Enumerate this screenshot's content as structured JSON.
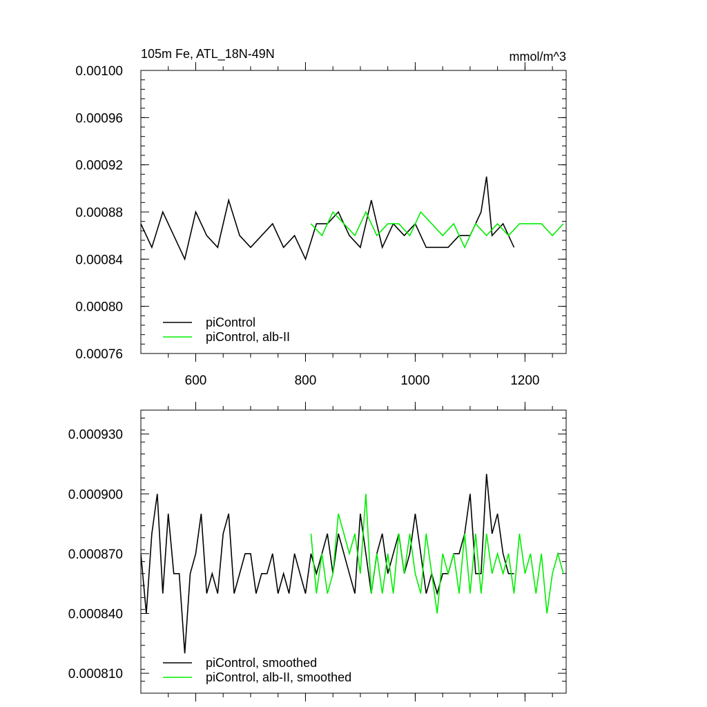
{
  "chart_data": [
    {
      "type": "line",
      "title": "105m Fe, ATL_18N-49N",
      "units": "mmol/m^3",
      "xlabel": "",
      "ylabel": "",
      "xlim": [
        500,
        1275
      ],
      "ylim": [
        0.00076,
        0.001
      ],
      "x_ticks": [
        600,
        800,
        1000,
        1200
      ],
      "x_tick_labels": [
        "600",
        "800",
        "1000",
        "1200"
      ],
      "y_ticks": [
        0.00076,
        0.0008,
        0.00084,
        0.00088,
        0.00092,
        0.00096,
        0.001
      ],
      "y_tick_labels": [
        "0.00076",
        "0.00080",
        "0.00084",
        "0.00088",
        "0.00092",
        "0.00096",
        "0.00100"
      ],
      "grid": false,
      "legend_position": "bottom-left",
      "series": [
        {
          "name": "piControl",
          "color": "#000000",
          "x": [
            500,
            520,
            540,
            560,
            580,
            600,
            620,
            640,
            660,
            680,
            700,
            720,
            740,
            760,
            780,
            800,
            820,
            840,
            860,
            880,
            900,
            920,
            940,
            960,
            980,
            1000,
            1020,
            1040,
            1060,
            1080,
            1100,
            1120,
            1130,
            1140,
            1160,
            1180
          ],
          "y": [
            0.00087,
            0.00085,
            0.00088,
            0.00086,
            0.00084,
            0.00088,
            0.00086,
            0.00085,
            0.00089,
            0.00086,
            0.00085,
            0.00086,
            0.00087,
            0.00085,
            0.00086,
            0.00084,
            0.00087,
            0.00087,
            0.00088,
            0.00086,
            0.00085,
            0.00089,
            0.00085,
            0.00087,
            0.00086,
            0.00087,
            0.00085,
            0.00085,
            0.00085,
            0.00086,
            0.00086,
            0.00088,
            0.00091,
            0.00086,
            0.00087,
            0.00085
          ]
        },
        {
          "name": "piControl, alb-II",
          "color": "#00ee00",
          "x": [
            810,
            830,
            850,
            870,
            890,
            910,
            930,
            950,
            970,
            990,
            1010,
            1030,
            1050,
            1070,
            1090,
            1110,
            1130,
            1150,
            1170,
            1190,
            1210,
            1230,
            1250,
            1270
          ],
          "y": [
            0.00087,
            0.00086,
            0.00088,
            0.00087,
            0.00086,
            0.00088,
            0.00086,
            0.00087,
            0.00087,
            0.00086,
            0.00088,
            0.00087,
            0.00086,
            0.00087,
            0.00085,
            0.00087,
            0.00086,
            0.00087,
            0.00086,
            0.00087,
            0.00087,
            0.00087,
            0.00086,
            0.00087
          ]
        }
      ]
    },
    {
      "type": "line",
      "title": "",
      "xlabel": "",
      "ylabel": "",
      "xlim": [
        500,
        1275
      ],
      "ylim": [
        0.0008,
        0.000942
      ],
      "x_ticks": [
        600,
        800,
        1000,
        1200
      ],
      "x_tick_labels": [],
      "y_ticks": [
        0.00081,
        0.00084,
        0.00087,
        0.0009,
        0.00093
      ],
      "y_tick_labels": [
        "0.000810",
        "0.000840",
        "0.000870",
        "0.000900",
        "0.000930"
      ],
      "grid": false,
      "legend_position": "bottom-left",
      "series": [
        {
          "name": "piControl, smoothed",
          "color": "#000000",
          "x": [
            500,
            510,
            520,
            530,
            540,
            550,
            560,
            570,
            580,
            590,
            600,
            610,
            620,
            630,
            640,
            650,
            660,
            670,
            680,
            690,
            700,
            710,
            720,
            730,
            740,
            750,
            760,
            770,
            780,
            790,
            800,
            810,
            820,
            830,
            840,
            850,
            860,
            870,
            880,
            890,
            900,
            910,
            920,
            930,
            940,
            950,
            960,
            970,
            980,
            990,
            1000,
            1010,
            1020,
            1030,
            1040,
            1050,
            1060,
            1070,
            1080,
            1090,
            1100,
            1110,
            1120,
            1130,
            1140,
            1150,
            1160,
            1170,
            1180
          ],
          "y": [
            0.00087,
            0.00084,
            0.00088,
            0.0009,
            0.00085,
            0.00089,
            0.00086,
            0.00086,
            0.00082,
            0.00086,
            0.00087,
            0.00089,
            0.00085,
            0.00086,
            0.00085,
            0.00088,
            0.00089,
            0.00085,
            0.00086,
            0.00087,
            0.00087,
            0.00085,
            0.00086,
            0.00086,
            0.00087,
            0.00085,
            0.00086,
            0.00085,
            0.00087,
            0.00086,
            0.00085,
            0.00087,
            0.00086,
            0.00087,
            0.00088,
            0.00086,
            0.00088,
            0.00087,
            0.00086,
            0.00085,
            0.00089,
            0.00087,
            0.00085,
            0.00087,
            0.00088,
            0.00086,
            0.00087,
            0.00088,
            0.00086,
            0.00087,
            0.00089,
            0.00087,
            0.00085,
            0.00086,
            0.00085,
            0.00086,
            0.00086,
            0.00087,
            0.00087,
            0.00088,
            0.0009,
            0.00086,
            0.00086,
            0.00091,
            0.00088,
            0.00089,
            0.00087,
            0.00086,
            0.00086
          ]
        },
        {
          "name": "piControl, alb-II, smoothed",
          "color": "#00ee00",
          "x": [
            810,
            820,
            830,
            840,
            850,
            860,
            870,
            880,
            890,
            900,
            910,
            920,
            930,
            940,
            950,
            960,
            970,
            980,
            990,
            1000,
            1010,
            1020,
            1030,
            1040,
            1050,
            1060,
            1070,
            1080,
            1090,
            1100,
            1110,
            1120,
            1130,
            1140,
            1150,
            1160,
            1170,
            1180,
            1190,
            1200,
            1210,
            1220,
            1230,
            1240,
            1250,
            1260,
            1270
          ],
          "y": [
            0.00088,
            0.00085,
            0.00087,
            0.00085,
            0.00086,
            0.00089,
            0.00088,
            0.00087,
            0.00088,
            0.00086,
            0.0009,
            0.00085,
            0.00087,
            0.00085,
            0.00087,
            0.00085,
            0.00088,
            0.00086,
            0.00088,
            0.00086,
            0.00085,
            0.00088,
            0.00086,
            0.00084,
            0.00087,
            0.00086,
            0.00087,
            0.00085,
            0.00088,
            0.00085,
            0.00088,
            0.00085,
            0.00088,
            0.00086,
            0.00087,
            0.00086,
            0.00087,
            0.00085,
            0.00088,
            0.00086,
            0.00087,
            0.00085,
            0.00087,
            0.00084,
            0.00086,
            0.00087,
            0.00086
          ]
        }
      ]
    }
  ]
}
